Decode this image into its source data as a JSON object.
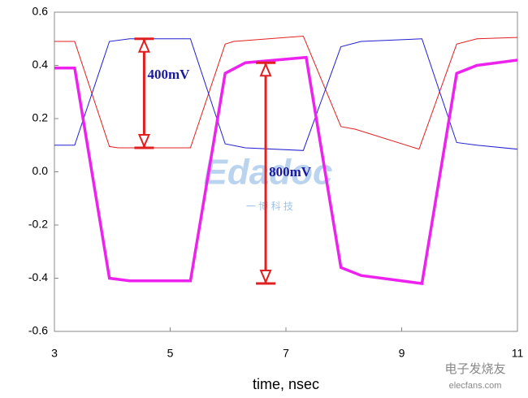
{
  "chart_data": {
    "type": "line",
    "xlabel": "time, nsec",
    "xlim": [
      3,
      11
    ],
    "xticks": [
      3,
      5,
      7,
      9,
      11
    ],
    "ylim": [
      -0.6,
      0.6
    ],
    "yticks": [
      -0.6,
      -0.4,
      -0.2,
      {
        "value": 0,
        "label": "0.0"
      },
      0.2,
      0.4,
      0.6
    ],
    "series": [
      {
        "color": "#e02020",
        "width": 1,
        "x": [
          3,
          3.35,
          3.95,
          4.1,
          5.35,
          5.95,
          6.1,
          7.3,
          7.95,
          8.2,
          9.3,
          9.95,
          10.3,
          11
        ],
        "values": [
          0.49,
          0.49,
          0.095,
          0.09,
          0.09,
          0.48,
          0.49,
          0.51,
          0.17,
          0.16,
          0.085,
          0.48,
          0.5,
          0.505
        ]
      },
      {
        "color": "#2020d0",
        "width": 1,
        "x": [
          3,
          3.35,
          3.95,
          4.3,
          5.35,
          5.95,
          6.3,
          7.3,
          7.95,
          8.3,
          9.35,
          9.95,
          10.3,
          11
        ],
        "values": [
          0.1,
          0.1,
          0.49,
          0.5,
          0.5,
          0.105,
          0.09,
          0.08,
          0.47,
          0.49,
          0.5,
          0.11,
          0.1,
          0.085
        ]
      },
      {
        "color": "#ee22ee",
        "width": 3.5,
        "x": [
          3,
          3.35,
          3.95,
          4.3,
          5.35,
          5.95,
          6.3,
          7.35,
          7.95,
          8.3,
          9.35,
          9.95,
          10.3,
          11
        ],
        "values": [
          0.39,
          0.39,
          -0.4,
          -0.41,
          -0.41,
          0.37,
          0.41,
          0.43,
          -0.36,
          -0.39,
          -0.42,
          0.37,
          0.4,
          0.42
        ]
      }
    ],
    "annotations": [
      {
        "text": "400mV",
        "x": 4.55,
        "y1": 0.5,
        "y2": 0.09,
        "color": "#e02020"
      },
      {
        "text": "800mV",
        "x": 6.65,
        "y1": 0.41,
        "y2": -0.42,
        "color": "#e02020"
      }
    ],
    "watermarks": [
      "Edadoc",
      "一 博 科 技",
      "电子发烧友",
      "elecfans.com"
    ]
  }
}
